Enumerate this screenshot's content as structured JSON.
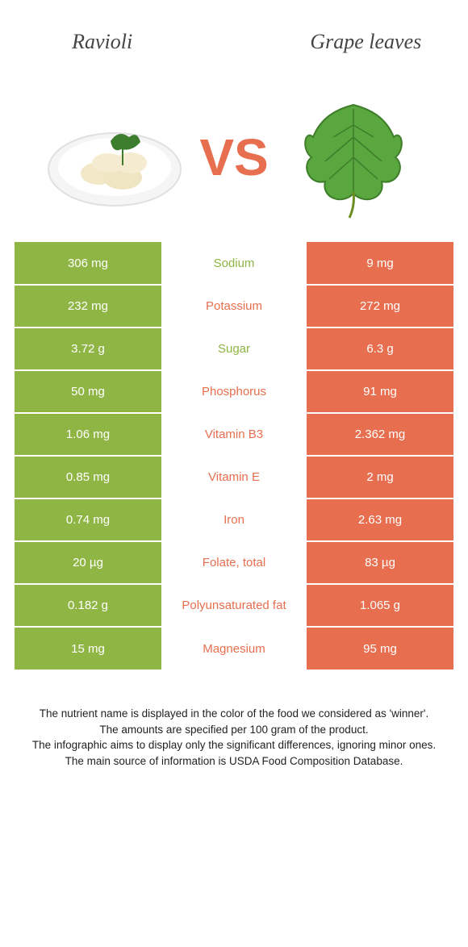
{
  "header": {
    "left_title": "Ravioli",
    "right_title": "Grape leaves",
    "vs_label": "VS"
  },
  "colors": {
    "left_bg": "#8fb544",
    "right_bg": "#e76e4e",
    "cell_text": "#ffffff",
    "page_bg": "#ffffff"
  },
  "rows": [
    {
      "nutrient": "Sodium",
      "left": "306 mg",
      "right": "9 mg",
      "winner": "left"
    },
    {
      "nutrient": "Potassium",
      "left": "232 mg",
      "right": "272 mg",
      "winner": "right"
    },
    {
      "nutrient": "Sugar",
      "left": "3.72 g",
      "right": "6.3 g",
      "winner": "left"
    },
    {
      "nutrient": "Phosphorus",
      "left": "50 mg",
      "right": "91 mg",
      "winner": "right"
    },
    {
      "nutrient": "Vitamin B3",
      "left": "1.06 mg",
      "right": "2.362 mg",
      "winner": "right"
    },
    {
      "nutrient": "Vitamin E",
      "left": "0.85 mg",
      "right": "2 mg",
      "winner": "right"
    },
    {
      "nutrient": "Iron",
      "left": "0.74 mg",
      "right": "2.63 mg",
      "winner": "right"
    },
    {
      "nutrient": "Folate, total",
      "left": "20 µg",
      "right": "83 µg",
      "winner": "right"
    },
    {
      "nutrient": "Polyunsaturated fat",
      "left": "0.182 g",
      "right": "1.065 g",
      "winner": "right"
    },
    {
      "nutrient": "Magnesium",
      "left": "15 mg",
      "right": "95 mg",
      "winner": "right"
    }
  ],
  "footnote": {
    "line1": "The nutrient name is displayed in the color of the food we considered as 'winner'.",
    "line2": "The amounts are specified per 100 gram of the product.",
    "line3": "The infographic aims to display only the significant differences, ignoring minor ones.",
    "line4": "The main source of information is USDA Food Composition Database."
  }
}
